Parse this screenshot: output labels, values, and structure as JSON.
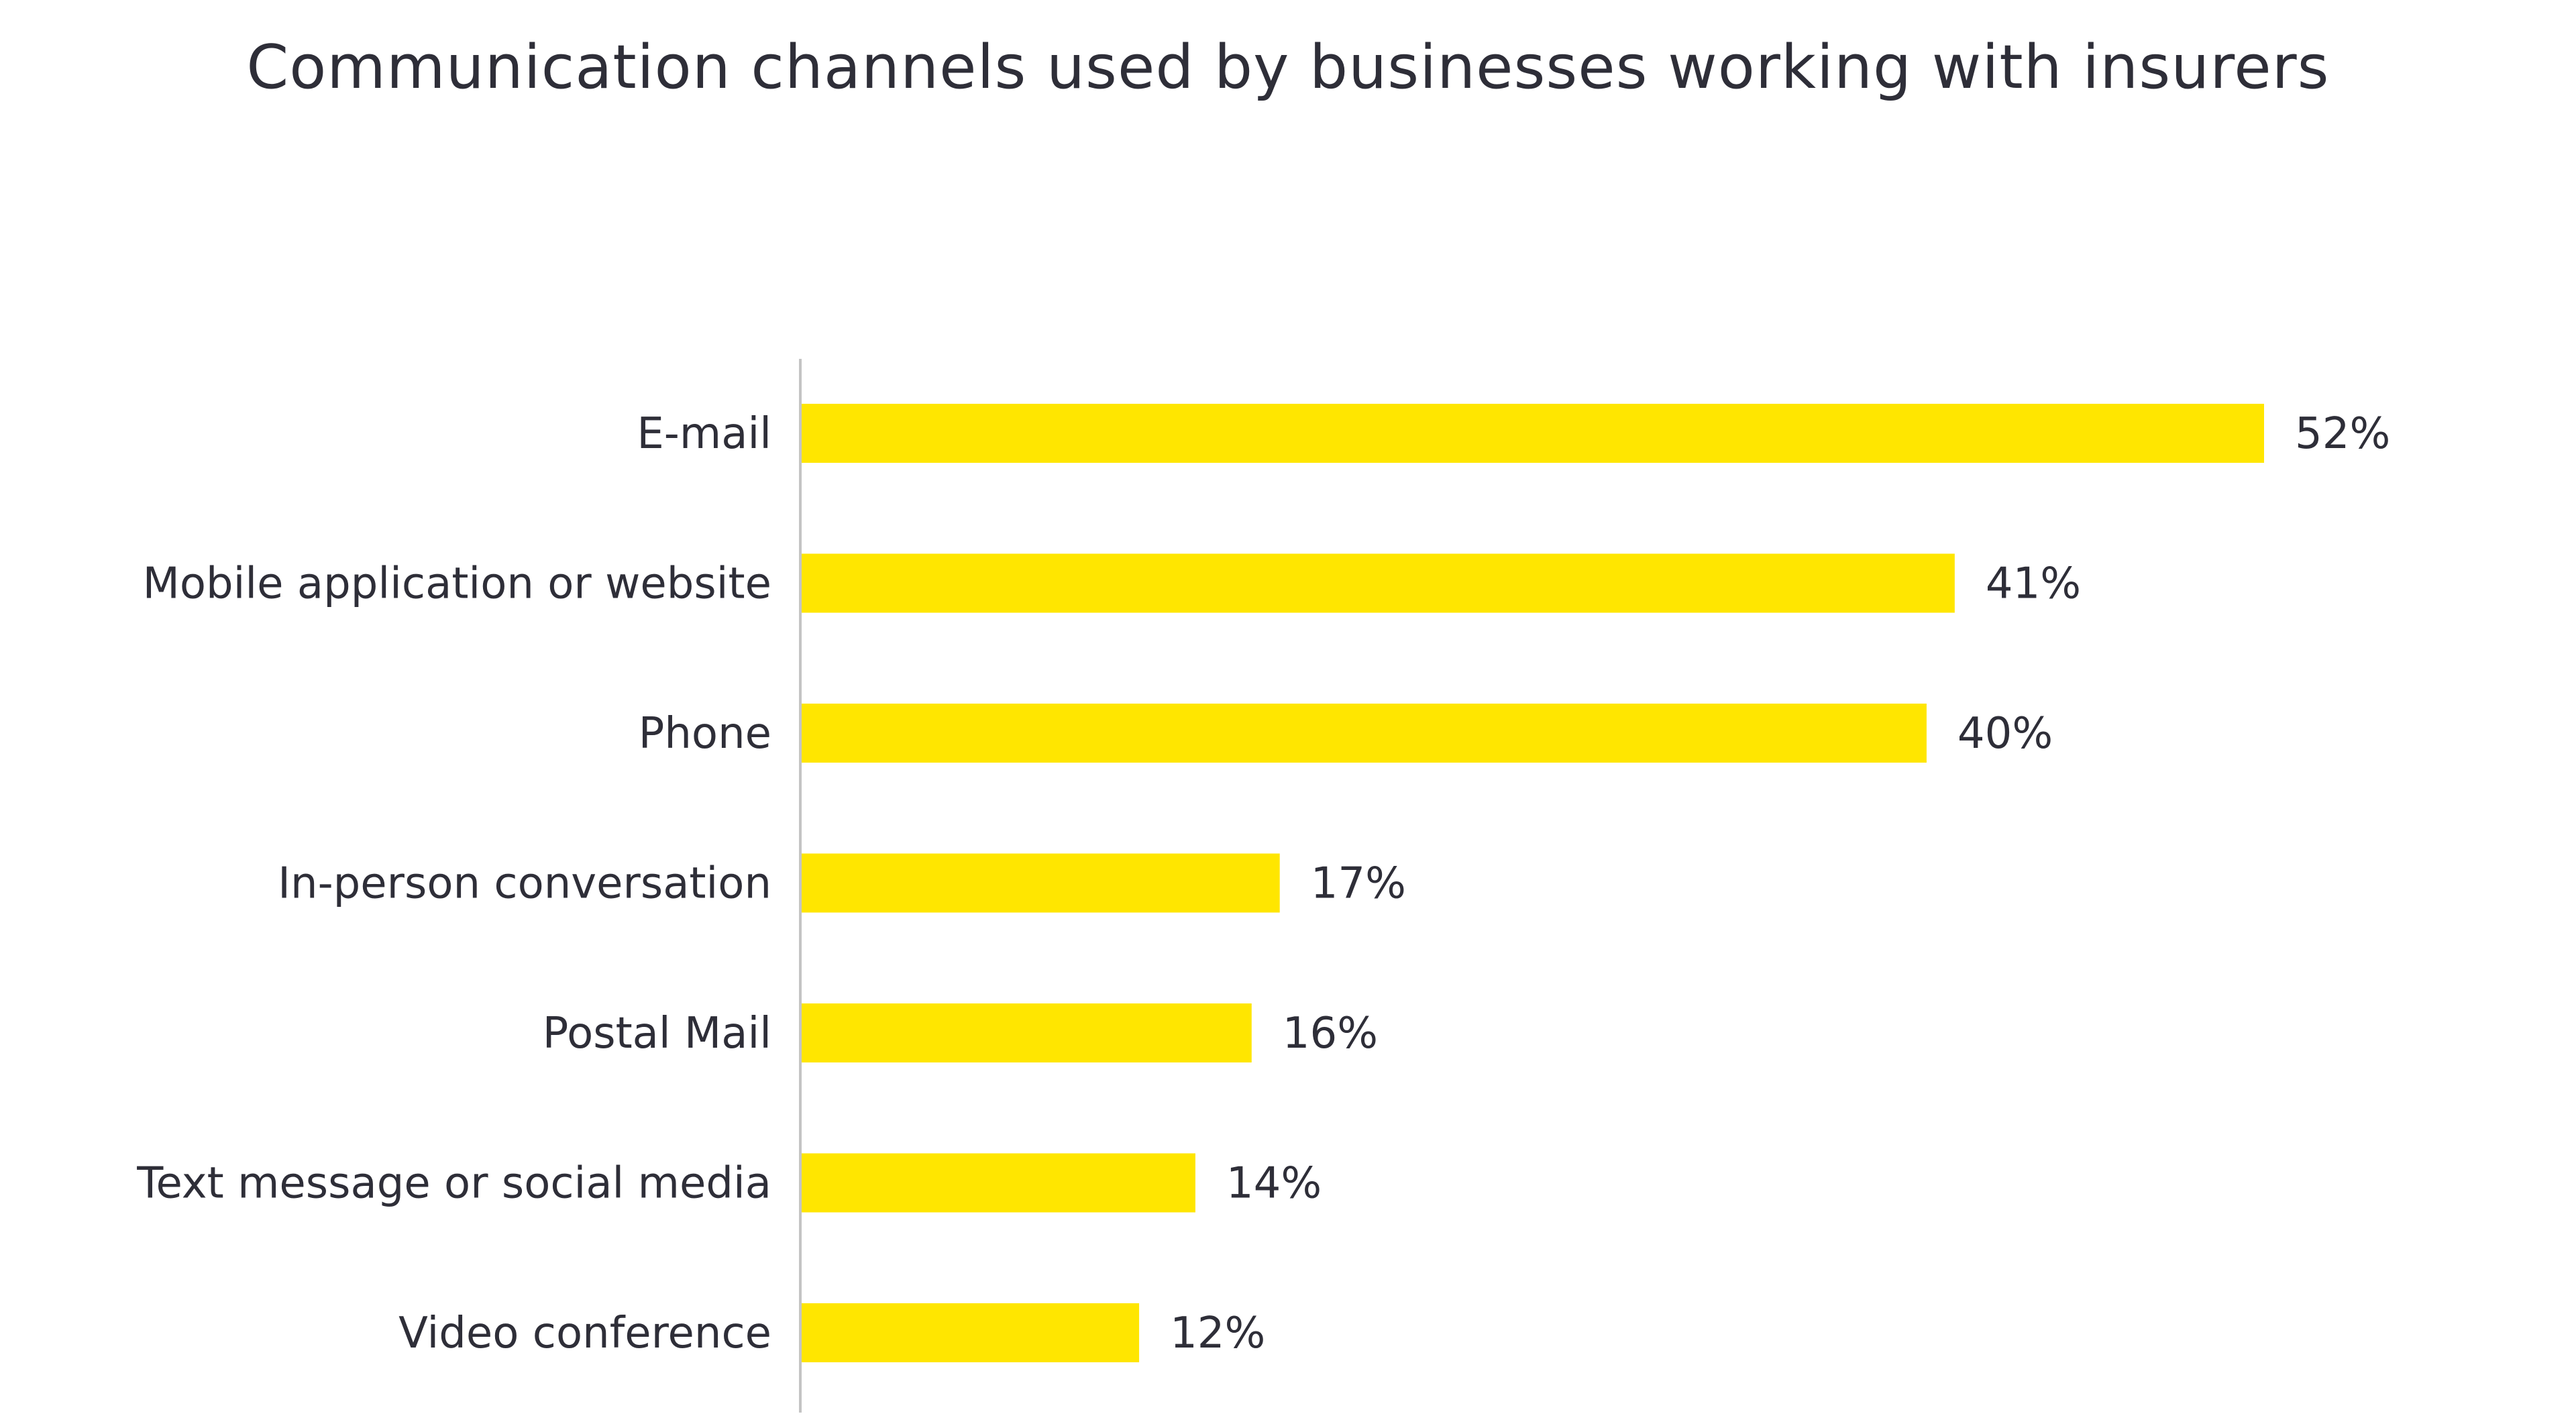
{
  "chart_data": {
    "type": "bar",
    "orientation": "horizontal",
    "title": "Communication channels used by businesses working with insurers",
    "categories": [
      "E-mail",
      "Mobile application or website",
      "Phone",
      "In-person conversation",
      "Postal Mail",
      "Text message or social media",
      "Video conference"
    ],
    "values": [
      52,
      41,
      40,
      17,
      16,
      14,
      12
    ],
    "value_labels": [
      "52%",
      "41%",
      "40%",
      "17%",
      "16%",
      "14%",
      "12%"
    ],
    "xlabel": "",
    "ylabel": "",
    "xlim": [
      0,
      60
    ],
    "grid": false,
    "legend": "none",
    "bar_color": "#ffe600",
    "axis_color": "#c4c4c4",
    "text_color": "#2e2e38"
  }
}
